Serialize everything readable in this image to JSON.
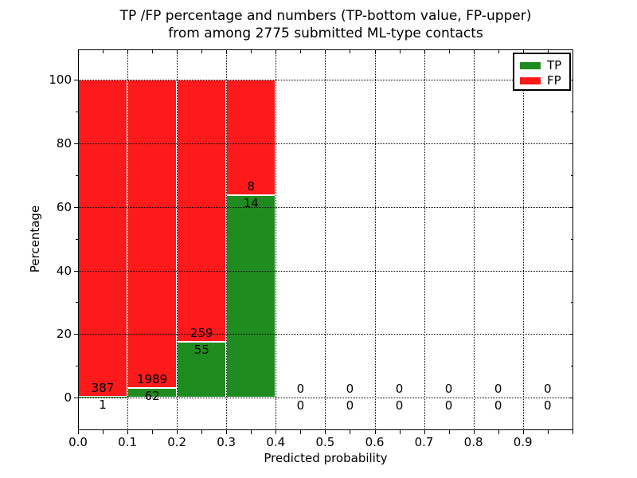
{
  "figure": {
    "title_line1": "TP /FP percentage and numbers (TP-bottom value, FP-upper)",
    "title_line2": "from among 2775 submitted ML-type contacts",
    "xlabel": "Predicted probability",
    "ylabel": "Percentage"
  },
  "legend": {
    "position": "upper right",
    "entries": [
      {
        "label": "TP",
        "color": "#1f8c1f"
      },
      {
        "label": "FP",
        "color": "#fc1a1a"
      }
    ]
  },
  "chart_data": {
    "type": "bar",
    "subtype": "stacked-percentage-histogram",
    "title": "TP /FP percentage and numbers (TP-bottom value, FP-upper)\nfrom among 2775 submitted ML-type contacts",
    "xlabel": "Predicted probability",
    "ylabel": "Percentage",
    "total_contacts": 2775,
    "bin_edges": [
      0.0,
      0.1,
      0.2,
      0.3,
      0.4,
      0.5,
      0.6,
      0.7,
      0.8,
      0.9,
      1.0
    ],
    "series": [
      {
        "name": "TP",
        "color": "#1f8c1f",
        "counts": [
          1,
          62,
          55,
          14,
          0,
          0,
          0,
          0,
          0,
          0
        ]
      },
      {
        "name": "FP",
        "color": "#fc1a1a",
        "counts": [
          387,
          1989,
          259,
          8,
          0,
          0,
          0,
          0,
          0,
          0
        ]
      }
    ],
    "tp_percent_of_bin": [
      0.26,
      3.02,
      17.52,
      63.64,
      0,
      0,
      0,
      0,
      0,
      0
    ],
    "bar_total_percent": [
      100,
      100,
      100,
      100,
      0,
      0,
      0,
      0,
      0,
      0
    ],
    "xticks": [
      0.0,
      0.1,
      0.2,
      0.3,
      0.4,
      0.5,
      0.6,
      0.7,
      0.8,
      0.9
    ],
    "xtick_labels": [
      "0.0",
      "0.1",
      "0.2",
      "0.3",
      "0.4",
      "0.5",
      "0.6",
      "0.7",
      "0.8",
      "0.9"
    ],
    "yticks": [
      0,
      20,
      40,
      60,
      80,
      100
    ],
    "ytick_labels": [
      "0",
      "20",
      "40",
      "60",
      "80",
      "100"
    ],
    "xlim": [
      0.0,
      1.002
    ],
    "ylim": [
      -10.3,
      109.6
    ],
    "grid": {
      "on": true,
      "style": "dotted",
      "color": "#000000"
    },
    "legend_position": "upper right",
    "colors": {
      "tp": "#1f8c1f",
      "fp": "#fc1a1a",
      "grid": "#000000",
      "frame": "#000000",
      "background": "#ffffff"
    }
  }
}
